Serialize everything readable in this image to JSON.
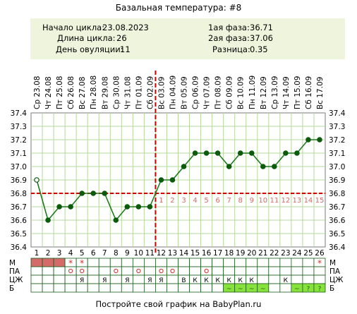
{
  "header": {
    "title": "Базальная температура: #8"
  },
  "info": {
    "cycle_start_label": "Начало цикла:",
    "cycle_start": "23.08.2023",
    "cycle_length_label": "Длина цикла:",
    "cycle_length": "26",
    "ovulation_day_label": "День овуляции:",
    "ovulation_day": "11",
    "phase1_label": "1ая фаза:",
    "phase1": "36.71",
    "phase2_label": "2ая фаза:",
    "phase2": "37.06",
    "diff_label": "Разница:",
    "diff": "0.35"
  },
  "footer": {
    "text": "Постройте свой график на BabyPlan.ru"
  },
  "chart_data": {
    "type": "line",
    "ylim": [
      36.4,
      37.4
    ],
    "yticks": [
      "36.4",
      "36.5",
      "36.6",
      "36.7",
      "36.8",
      "36.9",
      "37.0",
      "37.1",
      "37.2",
      "37.3",
      "37.4"
    ],
    "dates": [
      "Ср 23.08",
      "Чт 24.08",
      "Пт 25.08",
      "Сб 26.08",
      "Вс 27.08",
      "Пн 28.08",
      "Вт 29.08",
      "Ср 30.08",
      "Чт 31.08",
      "Пт 01.09",
      "Сб 02.09",
      "Вс 03.09",
      "Пн 04.09",
      "Вт 05.09",
      "Ср 06.09",
      "Чт 07.09",
      "Пт 08.09",
      "Сб 09.09",
      "Вс 10.09",
      "Пн 11.09",
      "Вт 12.09",
      "Ср 13.09",
      "Чт 14.09",
      "Пт 15.09",
      "Сб 16.09",
      "Вс 17.09"
    ],
    "days": [
      "1",
      "2",
      "3",
      "4",
      "5",
      "6",
      "7",
      "8",
      "9",
      "10",
      "11",
      "12",
      "13",
      "14",
      "15",
      "16",
      "17",
      "18",
      "19",
      "20",
      "21",
      "22",
      "23",
      "24",
      "25",
      "26"
    ],
    "series": [
      {
        "values": [
          36.9,
          36.6,
          36.7,
          36.7,
          36.8,
          36.8,
          36.8,
          36.6,
          36.7,
          36.7,
          36.7,
          36.9,
          36.9,
          37.0,
          37.1,
          37.1,
          37.1,
          37.0,
          37.1,
          37.1,
          37.0,
          37.0,
          37.1,
          37.1,
          37.2,
          37.2
        ]
      }
    ],
    "coverline": 36.8,
    "ovulation_day": 11,
    "phase2_day_labels": [
      "1",
      "2",
      "3",
      "4",
      "5",
      "6",
      "7",
      "8",
      "9",
      "10",
      "11",
      "12",
      "13",
      "14",
      "15"
    ],
    "colors": {
      "line": "#1f7a1f",
      "point": "#0a5c0a",
      "first_point": "#ffffff",
      "coverline": "#cc0000",
      "ovulation": "#cc0000",
      "phase_numbers": "#d46a6a",
      "grid": "#b5d99c",
      "menses": "#d46a6a",
      "b_fill": "#88e23c"
    },
    "markers": {
      "row_labels": [
        "М",
        "ПА",
        "ЦЖ",
        "Б"
      ],
      "M": [
        "full",
        "full",
        "full",
        "star",
        "star",
        "",
        "",
        "",
        "",
        "",
        "",
        "",
        "",
        "",
        "",
        "",
        "",
        "",
        "",
        "",
        "",
        "",
        "",
        "",
        "",
        "star"
      ],
      "PA": [
        "",
        "",
        "",
        "o",
        "o",
        "",
        "",
        "o",
        "",
        "o",
        "",
        "o",
        "o",
        "",
        "",
        "o",
        "",
        "",
        "",
        "",
        "",
        "",
        "",
        "",
        "",
        ""
      ],
      "CJ": [
        "",
        "",
        "",
        "",
        "Я",
        "",
        "Я",
        "",
        "Я",
        "",
        "Я",
        "Я",
        "",
        "В",
        "К",
        "К",
        "К",
        "К",
        "К",
        "К",
        "",
        "",
        "К",
        "",
        "",
        ""
      ],
      "B": [
        "",
        "",
        "",
        "",
        "",
        "",
        "",
        "",
        "",
        "",
        "",
        "",
        "",
        "",
        "",
        "",
        "",
        "~",
        "~",
        "~",
        "~",
        "",
        "",
        "~",
        "?",
        "?"
      ]
    }
  }
}
